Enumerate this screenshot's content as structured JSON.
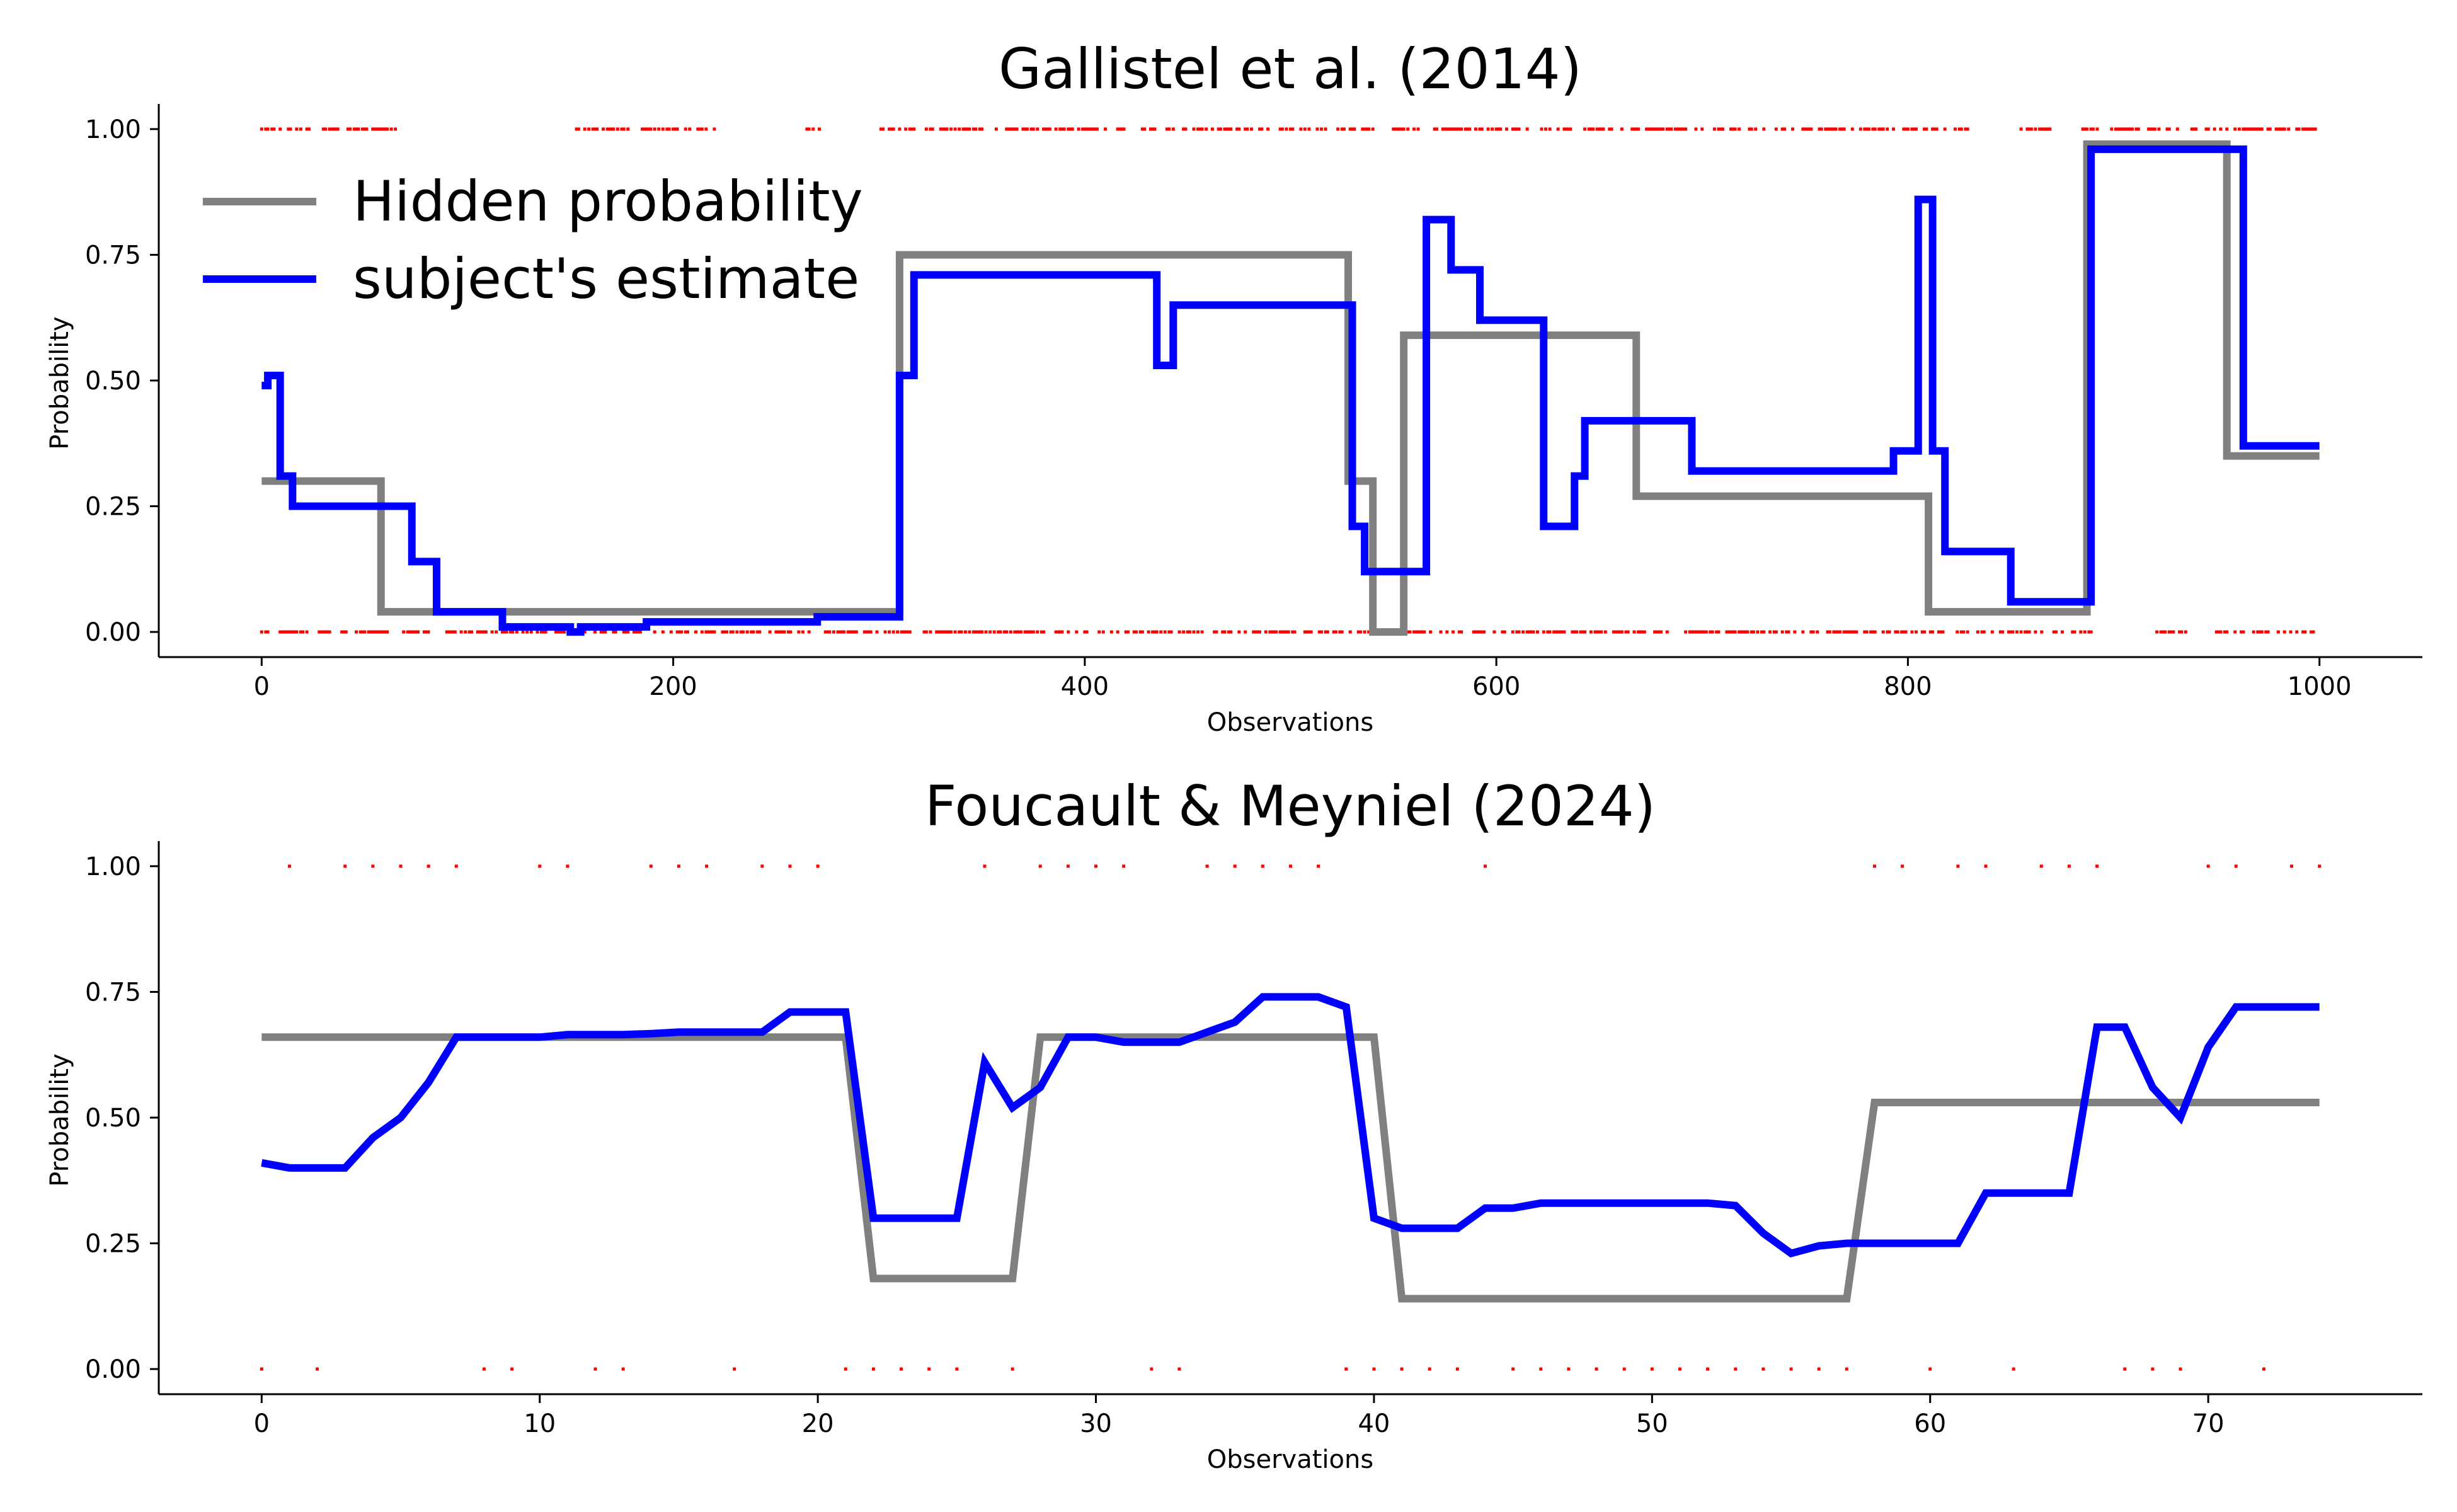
{
  "colors": {
    "hidden": "#808080",
    "estimate": "#0000ff",
    "observations": "#ff0000",
    "axes": "#000000"
  },
  "legend": {
    "location": "upper-left of top chart",
    "items": [
      {
        "label": "Hidden probability",
        "color": "#808080"
      },
      {
        "label": "subject's estimate",
        "color": "#0000ff"
      }
    ]
  },
  "chart_data": [
    {
      "type": "line",
      "title": "Gallistel et al. (2014)",
      "xlabel": "Observations",
      "ylabel": "Probability",
      "xlim": [
        -50,
        1050
      ],
      "ylim": [
        -0.05,
        1.05
      ],
      "xticks": [
        0,
        200,
        400,
        600,
        800,
        1000
      ],
      "xtick_labels": [
        "0",
        "200",
        "400",
        "600",
        "800",
        "1000"
      ],
      "yticks": [
        0,
        0.25,
        0.5,
        0.75,
        1.0
      ],
      "ytick_labels": [
        "0.00",
        "0.25",
        "0.50",
        "0.75",
        "1.00"
      ],
      "grid": false,
      "step": true,
      "series": [
        {
          "name": "Hidden probability",
          "x": [
            0,
            58,
            310,
            528,
            540,
            555,
            668,
            810,
            887,
            955,
            1000
          ],
          "y": [
            0.3,
            0.04,
            0.75,
            0.3,
            0.0,
            0.59,
            0.27,
            0.04,
            0.97,
            0.35,
            0.35
          ]
        },
        {
          "name": "subject's estimate",
          "x": [
            0,
            3,
            9,
            15,
            73,
            85,
            117,
            150,
            155,
            187,
            270,
            310,
            317,
            435,
            443,
            530,
            536,
            546,
            566,
            578,
            592,
            623,
            638,
            643,
            695,
            793,
            805,
            812,
            818,
            850,
            889,
            963,
            1000
          ],
          "y": [
            0.49,
            0.51,
            0.31,
            0.25,
            0.14,
            0.04,
            0.01,
            0.0,
            0.01,
            0.02,
            0.03,
            0.51,
            0.71,
            0.53,
            0.65,
            0.21,
            0.12,
            0.12,
            0.82,
            0.72,
            0.62,
            0.21,
            0.31,
            0.42,
            0.32,
            0.36,
            0.86,
            0.36,
            0.16,
            0.06,
            0.96,
            0.37,
            0.37
          ]
        }
      ],
      "observations": {
        "ones_ranges": [
          [
            0,
            65
          ],
          [
            150,
            220
          ],
          [
            265,
            275
          ],
          [
            300,
            540
          ],
          [
            550,
            830
          ],
          [
            855,
            870
          ],
          [
            885,
            1000
          ]
        ],
        "zeros_ranges": [
          [
            0,
            315
          ],
          [
            320,
            545
          ],
          [
            555,
            890
          ],
          [
            920,
            935
          ],
          [
            950,
            1000
          ]
        ],
        "density": 0.55
      }
    },
    {
      "type": "line",
      "title": "Foucault & Meyniel (2024)",
      "xlabel": "Observations",
      "ylabel": "Probability",
      "xlim": [
        -3.7,
        77.7
      ],
      "ylim": [
        -0.05,
        1.05
      ],
      "xticks": [
        0,
        10,
        20,
        30,
        40,
        50,
        60,
        70
      ],
      "xtick_labels": [
        "0",
        "10",
        "20",
        "30",
        "40",
        "50",
        "60",
        "70"
      ],
      "yticks": [
        0,
        0.25,
        0.5,
        0.75,
        1.0
      ],
      "ytick_labels": [
        "0.00",
        "0.25",
        "0.50",
        "0.75",
        "1.00"
      ],
      "grid": false,
      "step": false,
      "series": [
        {
          "name": "Hidden probability",
          "x": [
            0,
            21,
            22,
            27,
            28,
            40,
            41,
            57,
            58,
            74
          ],
          "y": [
            0.66,
            0.66,
            0.18,
            0.18,
            0.66,
            0.66,
            0.14,
            0.14,
            0.53,
            0.53
          ]
        },
        {
          "name": "subject's estimate",
          "x": [
            0,
            1,
            2,
            3,
            4,
            5,
            6,
            7,
            8,
            9,
            10,
            11,
            12,
            13,
            14,
            15,
            16,
            17,
            18,
            19,
            20,
            21,
            22,
            23,
            24,
            25,
            26,
            27,
            28,
            29,
            30,
            31,
            32,
            33,
            34,
            35,
            36,
            37,
            38,
            39,
            40,
            41,
            42,
            43,
            44,
            45,
            46,
            47,
            48,
            49,
            50,
            51,
            52,
            53,
            54,
            55,
            56,
            57,
            58,
            59,
            60,
            61,
            62,
            63,
            64,
            65,
            66,
            67,
            68,
            69,
            70,
            71,
            72,
            73,
            74
          ],
          "y": [
            0.41,
            0.4,
            0.4,
            0.4,
            0.46,
            0.5,
            0.57,
            0.66,
            0.66,
            0.66,
            0.66,
            0.665,
            0.665,
            0.665,
            0.667,
            0.67,
            0.67,
            0.67,
            0.67,
            0.71,
            0.71,
            0.71,
            0.3,
            0.3,
            0.3,
            0.3,
            0.61,
            0.52,
            0.56,
            0.66,
            0.66,
            0.65,
            0.65,
            0.65,
            0.67,
            0.69,
            0.74,
            0.74,
            0.74,
            0.72,
            0.3,
            0.28,
            0.28,
            0.28,
            0.32,
            0.32,
            0.33,
            0.33,
            0.33,
            0.33,
            0.33,
            0.33,
            0.33,
            0.325,
            0.27,
            0.23,
            0.245,
            0.25,
            0.25,
            0.25,
            0.25,
            0.25,
            0.35,
            0.35,
            0.35,
            0.35,
            0.68,
            0.68,
            0.56,
            0.5,
            0.64,
            0.72,
            0.72,
            0.72,
            0.72
          ]
        }
      ],
      "observations": {
        "ones_x": [
          1,
          3,
          4,
          5,
          6,
          7,
          10,
          11,
          14,
          15,
          16,
          18,
          19,
          20,
          26,
          28,
          29,
          30,
          31,
          34,
          35,
          36,
          37,
          38,
          44,
          58,
          59,
          61,
          62,
          64,
          65,
          66,
          70,
          71,
          73,
          74
        ],
        "zeros_x": [
          0,
          2,
          8,
          9,
          12,
          13,
          17,
          21,
          22,
          23,
          24,
          25,
          27,
          32,
          33,
          39,
          40,
          41,
          42,
          43,
          45,
          46,
          47,
          48,
          49,
          50,
          51,
          52,
          53,
          54,
          55,
          56,
          57,
          60,
          63,
          67,
          68,
          69,
          72
        ]
      }
    }
  ]
}
